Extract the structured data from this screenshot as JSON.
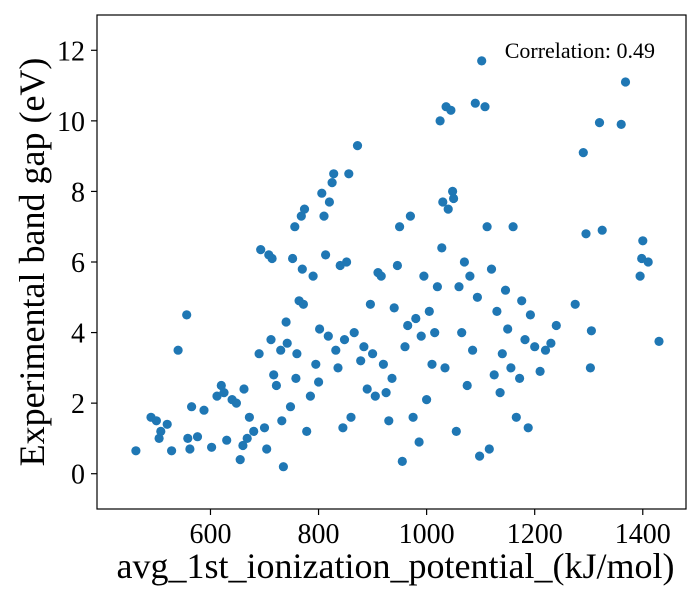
{
  "chart_data": {
    "type": "scatter",
    "title": "",
    "xlabel": "avg_1st_ionization_potential_(kJ/mol)",
    "ylabel": "Experimental band gap (eV)",
    "xlim": [
      390,
      1480
    ],
    "ylim": [
      -1,
      13
    ],
    "x_ticks": [
      600,
      800,
      1000,
      1200,
      1400
    ],
    "y_ticks": [
      0,
      2,
      4,
      6,
      8,
      10,
      12
    ],
    "grid": false,
    "legend": "none",
    "annotation": "Correlation: 0.49",
    "marker_color": "#1f77b4",
    "series": [
      {
        "points": [
          [
            462,
            0.65
          ],
          [
            490,
            1.6
          ],
          [
            500,
            1.5
          ],
          [
            505,
            1.0
          ],
          [
            508,
            1.2
          ],
          [
            520,
            1.4
          ],
          [
            528,
            0.65
          ],
          [
            540,
            3.5
          ],
          [
            556,
            4.5
          ],
          [
            558,
            1.0
          ],
          [
            562,
            0.7
          ],
          [
            565,
            1.9
          ],
          [
            576,
            1.05
          ],
          [
            588,
            1.8
          ],
          [
            602,
            0.75
          ],
          [
            612,
            2.2
          ],
          [
            620,
            2.5
          ],
          [
            625,
            2.3
          ],
          [
            630,
            0.95
          ],
          [
            640,
            2.1
          ],
          [
            648,
            2.0
          ],
          [
            655,
            0.4
          ],
          [
            660,
            0.8
          ],
          [
            662,
            2.4
          ],
          [
            668,
            1.0
          ],
          [
            672,
            1.6
          ],
          [
            680,
            1.2
          ],
          [
            690,
            3.4
          ],
          [
            693,
            6.35
          ],
          [
            700,
            1.3
          ],
          [
            704,
            0.7
          ],
          [
            708,
            6.2
          ],
          [
            712,
            3.8
          ],
          [
            714,
            6.1
          ],
          [
            717,
            2.8
          ],
          [
            722,
            2.5
          ],
          [
            730,
            3.5
          ],
          [
            732,
            1.5
          ],
          [
            735,
            0.2
          ],
          [
            740,
            4.3
          ],
          [
            742,
            3.7
          ],
          [
            748,
            1.9
          ],
          [
            752,
            6.1
          ],
          [
            756,
            7.0
          ],
          [
            758,
            2.7
          ],
          [
            760,
            3.4
          ],
          [
            764,
            4.9
          ],
          [
            768,
            7.3
          ],
          [
            770,
            5.8
          ],
          [
            772,
            4.8
          ],
          [
            774,
            7.5
          ],
          [
            778,
            1.2
          ],
          [
            785,
            2.2
          ],
          [
            790,
            5.6
          ],
          [
            795,
            3.1
          ],
          [
            800,
            2.6
          ],
          [
            802,
            4.1
          ],
          [
            806,
            7.95
          ],
          [
            810,
            7.3
          ],
          [
            813,
            6.2
          ],
          [
            818,
            3.9
          ],
          [
            820,
            7.7
          ],
          [
            825,
            8.25
          ],
          [
            828,
            8.5
          ],
          [
            832,
            3.5
          ],
          [
            836,
            3.0
          ],
          [
            840,
            5.9
          ],
          [
            845,
            1.3
          ],
          [
            848,
            3.8
          ],
          [
            852,
            6.0
          ],
          [
            856,
            8.5
          ],
          [
            860,
            1.6
          ],
          [
            866,
            4.0
          ],
          [
            872,
            9.3
          ],
          [
            878,
            3.2
          ],
          [
            884,
            3.6
          ],
          [
            890,
            2.4
          ],
          [
            896,
            4.8
          ],
          [
            900,
            3.4
          ],
          [
            905,
            2.2
          ],
          [
            910,
            5.7
          ],
          [
            916,
            5.6
          ],
          [
            920,
            3.1
          ],
          [
            925,
            2.3
          ],
          [
            930,
            1.5
          ],
          [
            936,
            2.7
          ],
          [
            940,
            4.7
          ],
          [
            946,
            5.9
          ],
          [
            950,
            7.0
          ],
          [
            955,
            0.35
          ],
          [
            960,
            3.6
          ],
          [
            965,
            4.2
          ],
          [
            970,
            7.3
          ],
          [
            975,
            1.6
          ],
          [
            980,
            4.4
          ],
          [
            986,
            0.9
          ],
          [
            990,
            3.9
          ],
          [
            995,
            5.6
          ],
          [
            1000,
            2.1
          ],
          [
            1005,
            4.6
          ],
          [
            1010,
            3.1
          ],
          [
            1015,
            4.0
          ],
          [
            1020,
            5.3
          ],
          [
            1025,
            10.0
          ],
          [
            1028,
            6.4
          ],
          [
            1030,
            7.7
          ],
          [
            1034,
            3.0
          ],
          [
            1036,
            10.4
          ],
          [
            1040,
            7.5
          ],
          [
            1045,
            10.3
          ],
          [
            1048,
            8.0
          ],
          [
            1050,
            7.8
          ],
          [
            1055,
            1.2
          ],
          [
            1060,
            5.3
          ],
          [
            1065,
            4.0
          ],
          [
            1070,
            6.0
          ],
          [
            1075,
            2.5
          ],
          [
            1080,
            5.6
          ],
          [
            1085,
            3.5
          ],
          [
            1090,
            10.5
          ],
          [
            1094,
            5.0
          ],
          [
            1098,
            0.5
          ],
          [
            1102,
            11.7
          ],
          [
            1108,
            10.4
          ],
          [
            1112,
            7.0
          ],
          [
            1116,
            0.7
          ],
          [
            1120,
            5.8
          ],
          [
            1125,
            2.8
          ],
          [
            1130,
            4.6
          ],
          [
            1136,
            2.3
          ],
          [
            1140,
            3.4
          ],
          [
            1146,
            5.2
          ],
          [
            1150,
            4.1
          ],
          [
            1156,
            3.0
          ],
          [
            1160,
            7.0
          ],
          [
            1166,
            1.6
          ],
          [
            1172,
            2.7
          ],
          [
            1176,
            4.9
          ],
          [
            1182,
            3.8
          ],
          [
            1188,
            1.3
          ],
          [
            1192,
            4.5
          ],
          [
            1200,
            3.6
          ],
          [
            1210,
            2.9
          ],
          [
            1220,
            3.5
          ],
          [
            1230,
            3.7
          ],
          [
            1240,
            4.2
          ],
          [
            1275,
            4.8
          ],
          [
            1290,
            9.1
          ],
          [
            1295,
            6.8
          ],
          [
            1305,
            4.05
          ],
          [
            1303,
            3.0
          ],
          [
            1320,
            9.95
          ],
          [
            1325,
            6.9
          ],
          [
            1360,
            9.9
          ],
          [
            1368,
            11.1
          ],
          [
            1395,
            5.6
          ],
          [
            1398,
            6.1
          ],
          [
            1400,
            6.6
          ],
          [
            1410,
            6.0
          ],
          [
            1430,
            3.75
          ]
        ]
      }
    ]
  }
}
